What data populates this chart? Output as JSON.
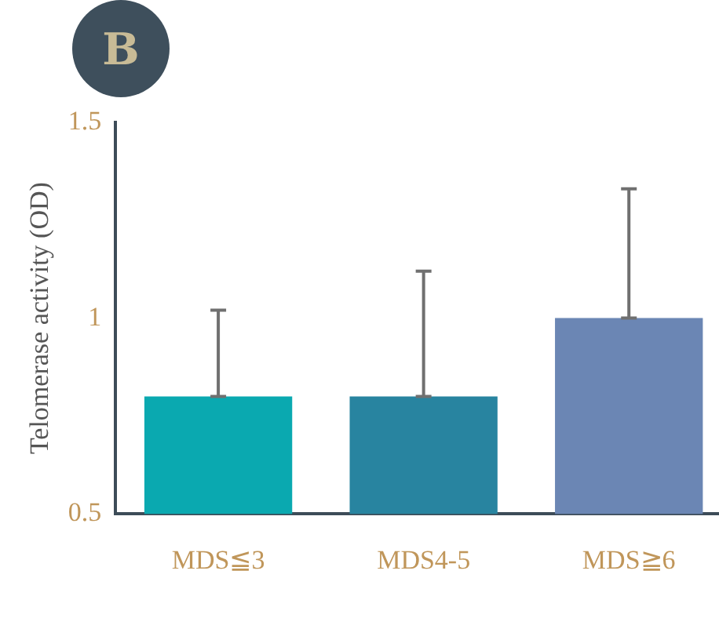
{
  "chart_data": {
    "type": "bar",
    "ylabel": "Telomerase activity (OD)",
    "annotations": [
      "B"
    ],
    "categories": [
      "MDS≦3",
      "MDS4-5",
      "MDS≧6"
    ],
    "values": [
      0.8,
      0.8,
      1.0
    ],
    "colors": [
      "#0aa9b0",
      "#2884a0",
      "#6b86b4"
    ],
    "errors": [
      [
        0.8,
        1.02
      ],
      [
        0.8,
        1.12
      ],
      [
        1.0,
        1.33
      ]
    ],
    "ylim": [
      0.5,
      1.5
    ],
    "yticks": [
      0.5,
      1,
      1.5
    ],
    "grid": false
  }
}
